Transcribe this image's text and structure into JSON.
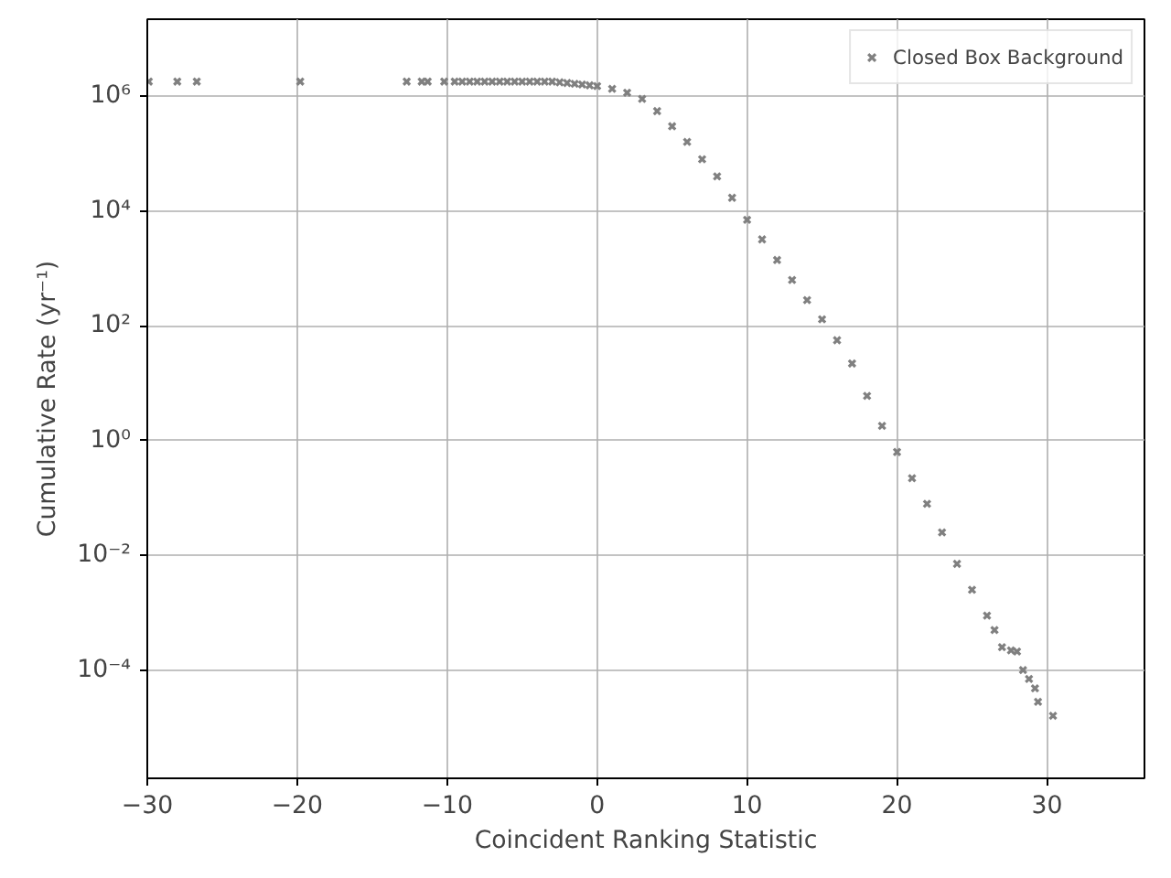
{
  "chart_data": {
    "type": "scatter",
    "xlabel": "Coincident Ranking Statistic",
    "ylabel": "Cumulative Rate (yr⁻¹)",
    "log": "y",
    "grid": true,
    "legend": "top right",
    "marker": "cross",
    "xlim": [
      -30,
      36.5
    ],
    "ylim": [
      1.3e-06,
      22000000.0
    ],
    "xticks": [
      {
        "value": -30,
        "label": "−30"
      },
      {
        "value": -20,
        "label": "−20"
      },
      {
        "value": -10,
        "label": "−10"
      },
      0,
      10,
      20,
      30
    ],
    "yticks": [
      {
        "value": 0.0001,
        "label": "10⁻⁴"
      },
      {
        "value": 0.01,
        "label": "10⁻²"
      },
      {
        "value": 1,
        "label": "10⁰"
      },
      {
        "value": 100,
        "label": "10²"
      },
      {
        "value": 10000,
        "label": "10⁴"
      },
      {
        "value": 1000000,
        "label": "10⁶"
      }
    ],
    "series": [
      {
        "name": "Closed Box Background",
        "color": "#808080",
        "x": [
          -29.9,
          -28.0,
          -26.7,
          -19.8,
          -12.7,
          -11.7,
          -11.3,
          -10.2,
          -9.5,
          -9,
          -8.5,
          -8,
          -7.5,
          -7,
          -6.5,
          -6,
          -5.5,
          -5,
          -4.5,
          -4,
          -3.5,
          -3,
          -2.5,
          -2,
          -1.5,
          -1,
          -0.5,
          0,
          1,
          2,
          3,
          4,
          5,
          6,
          7,
          8,
          9,
          10,
          11,
          12,
          13,
          14,
          15,
          16,
          17,
          18,
          19,
          20,
          21,
          22,
          23,
          24,
          25,
          26,
          26.5,
          27,
          27.6,
          28,
          28.4,
          28.8,
          29.2,
          29.4,
          30.4
        ],
        "values": [
          1800000.0,
          1800000.0,
          1800000.0,
          1800000.0,
          1800000.0,
          1800000.0,
          1800000.0,
          1800000.0,
          1800000.0,
          1800000.0,
          1800000.0,
          1800000.0,
          1800000.0,
          1800000.0,
          1800000.0,
          1800000.0,
          1800000.0,
          1800000.0,
          1800000.0,
          1800000.0,
          1800000.0,
          1800000.0,
          1750000.0,
          1700000.0,
          1650000.0,
          1600000.0,
          1550000.0,
          1500000.0,
          1350000.0,
          1150000.0,
          900000.0,
          550000.0,
          300000.0,
          160000.0,
          80000.0,
          40000.0,
          17000.0,
          7000.0,
          3200.0,
          1400.0,
          630,
          280,
          130,
          56,
          22,
          6,
          1.8,
          0.63,
          0.22,
          0.079,
          0.025,
          0.0071,
          0.0025,
          0.00089,
          0.0005,
          0.00025,
          0.00022,
          0.00021,
          0.0001,
          7e-05,
          4.8e-05,
          2.8e-05,
          1.6e-05
        ]
      }
    ]
  }
}
